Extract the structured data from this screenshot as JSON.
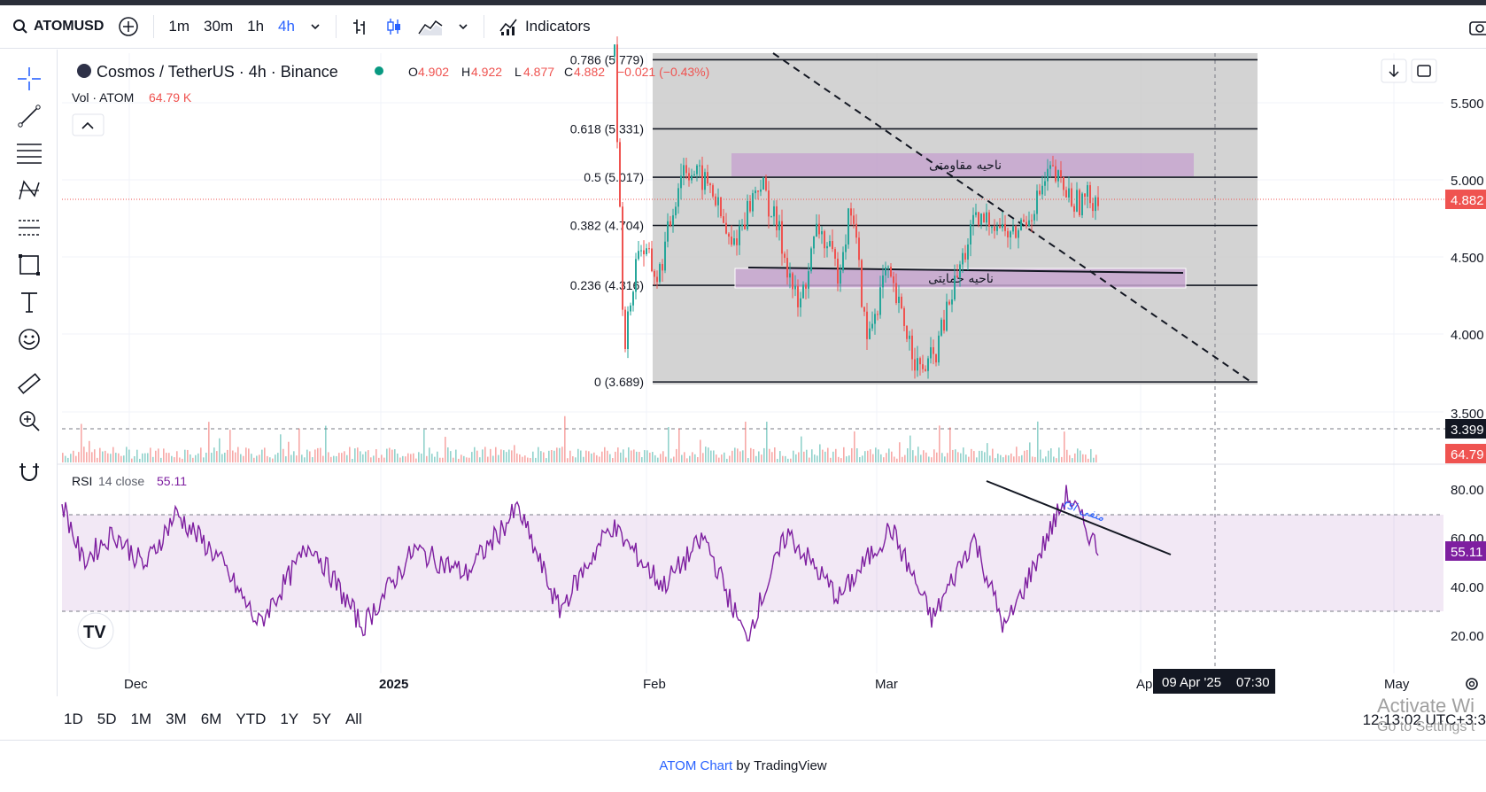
{
  "toolbar": {
    "symbol": "ATOMUSD",
    "intervals": [
      "1m",
      "30m",
      "1h",
      "4h"
    ],
    "active_interval": "4h",
    "indicators_label": "Indicators"
  },
  "legend": {
    "pair": "Cosmos / TetherUS · 4h · Binance",
    "o_label": "O",
    "o": "4.902",
    "h_label": "H",
    "h": "4.922",
    "l_label": "L",
    "l": "4.877",
    "c_label": "C",
    "c": "4.882",
    "change": "−0.021 (−0.43%)",
    "vol_label": "Vol · ATOM",
    "vol": "64.79 K"
  },
  "chart_data": {
    "type": "candlestick",
    "symbol": "ATOMUSD",
    "x_ticks": [
      "Dec",
      "2025",
      "Feb",
      "Mar",
      "Apr",
      "May"
    ],
    "price_ticks": [
      "5.500",
      "5.000",
      "4.500",
      "4.000",
      "3.500"
    ],
    "last_price": "4.882",
    "crosshair_price": "3.399",
    "crosshair_date": "09 Apr '25",
    "crosshair_time": "07:30",
    "volume_label": "64.79",
    "fib_levels": [
      {
        "label": "0.786 (5.779)",
        "value": 5.779
      },
      {
        "label": "0.618 (5.331)",
        "value": 5.331
      },
      {
        "label": "0.5 (5.017)",
        "value": 5.017
      },
      {
        "label": "0.382 (4.704)",
        "value": 4.704
      },
      {
        "label": "0.236 (4.316)",
        "value": 4.316
      },
      {
        "label": "0 (3.689)",
        "value": 3.689
      }
    ],
    "annotations": [
      {
        "text": "ناحیه مقاومتی",
        "type": "resistance-zone"
      },
      {
        "text": "ناحیه حمایتی",
        "type": "support-zone"
      },
      {
        "text": "rsi منفی",
        "type": "rsi-divergence"
      }
    ],
    "price_series": [
      {
        "x": 0.0,
        "y": 5.8
      },
      {
        "x": 0.02,
        "y": 3.9
      },
      {
        "x": 0.05,
        "y": 4.6
      },
      {
        "x": 0.09,
        "y": 4.35
      },
      {
        "x": 0.14,
        "y": 5.1
      },
      {
        "x": 0.2,
        "y": 4.95
      },
      {
        "x": 0.24,
        "y": 4.55
      },
      {
        "x": 0.3,
        "y": 5.0
      },
      {
        "x": 0.34,
        "y": 4.65
      },
      {
        "x": 0.38,
        "y": 4.15
      },
      {
        "x": 0.42,
        "y": 4.7
      },
      {
        "x": 0.46,
        "y": 4.4
      },
      {
        "x": 0.49,
        "y": 4.85
      },
      {
        "x": 0.52,
        "y": 3.95
      },
      {
        "x": 0.56,
        "y": 4.4
      },
      {
        "x": 0.6,
        "y": 4.05
      },
      {
        "x": 0.63,
        "y": 3.75
      },
      {
        "x": 0.66,
        "y": 3.85
      },
      {
        "x": 0.7,
        "y": 4.3
      },
      {
        "x": 0.74,
        "y": 4.7
      },
      {
        "x": 0.78,
        "y": 4.75
      },
      {
        "x": 0.82,
        "y": 4.62
      },
      {
        "x": 0.86,
        "y": 4.8
      },
      {
        "x": 0.9,
        "y": 5.05
      },
      {
        "x": 0.95,
        "y": 4.85
      },
      {
        "x": 1.0,
        "y": 4.9
      }
    ],
    "rsi": {
      "label": "RSI",
      "params": "14 close",
      "value": "55.11",
      "ticks": [
        "80.00",
        "60.00",
        "40.00",
        "20.00"
      ],
      "upper_band": 70,
      "lower_band": 30,
      "series": [
        {
          "x": 0.0,
          "y": 75
        },
        {
          "x": 0.02,
          "y": 50
        },
        {
          "x": 0.05,
          "y": 62
        },
        {
          "x": 0.08,
          "y": 48
        },
        {
          "x": 0.11,
          "y": 70
        },
        {
          "x": 0.15,
          "y": 52
        },
        {
          "x": 0.19,
          "y": 24
        },
        {
          "x": 0.24,
          "y": 58
        },
        {
          "x": 0.29,
          "y": 23
        },
        {
          "x": 0.34,
          "y": 55
        },
        {
          "x": 0.39,
          "y": 45
        },
        {
          "x": 0.44,
          "y": 72
        },
        {
          "x": 0.48,
          "y": 30
        },
        {
          "x": 0.53,
          "y": 65
        },
        {
          "x": 0.58,
          "y": 40
        },
        {
          "x": 0.62,
          "y": 60
        },
        {
          "x": 0.66,
          "y": 18
        },
        {
          "x": 0.7,
          "y": 62
        },
        {
          "x": 0.75,
          "y": 35
        },
        {
          "x": 0.8,
          "y": 64
        },
        {
          "x": 0.84,
          "y": 26
        },
        {
          "x": 0.88,
          "y": 60
        },
        {
          "x": 0.91,
          "y": 22
        },
        {
          "x": 0.94,
          "y": 50
        },
        {
          "x": 0.97,
          "y": 78
        },
        {
          "x": 1.0,
          "y": 55
        }
      ]
    }
  },
  "bottom": {
    "ranges": [
      "1D",
      "5D",
      "1M",
      "3M",
      "6M",
      "YTD",
      "1Y",
      "5Y",
      "All"
    ],
    "clock": "12:13:02 UTC+3:3"
  },
  "watermark": {
    "line1": "Activate Wi",
    "line2": "Go to Settings t"
  },
  "footer": {
    "link": "ATOM Chart",
    "suffix": " by TradingView"
  },
  "colors": {
    "up": "#26a69a",
    "down": "#ef5350",
    "rsi": "#7e1fa0",
    "accent": "#2962ff",
    "zone": "#c7a6cf"
  }
}
